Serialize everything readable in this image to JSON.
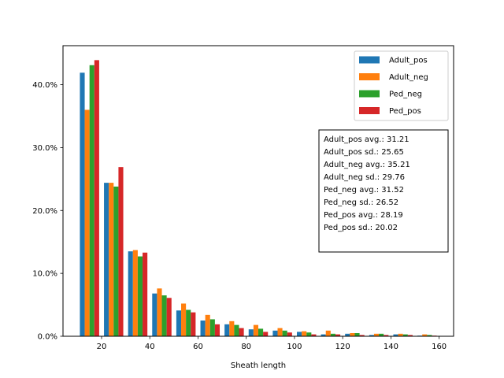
{
  "chart_data": {
    "type": "bar",
    "xlabel": "Sheath length",
    "ylabel": "",
    "xlim": [
      4,
      166
    ],
    "ylim": [
      0,
      0.462
    ],
    "bin_edges": [
      10,
      20,
      30,
      40,
      50,
      60,
      70,
      80,
      90,
      100,
      110,
      120,
      130,
      140,
      150,
      160
    ],
    "x_ticks": [
      20,
      40,
      60,
      80,
      100,
      120,
      140,
      160
    ],
    "x_tick_labels": [
      "20",
      "40",
      "60",
      "80",
      "100",
      "120",
      "140",
      "160"
    ],
    "y_ticks": [
      0,
      0.1,
      0.2,
      0.3,
      0.4
    ],
    "y_tick_labels": [
      "0.0%",
      "10.0%",
      "20.0%",
      "30.0%",
      "40.0%"
    ],
    "series": [
      {
        "name": "Adult_pos",
        "color": "#1f77b4",
        "values": [
          0.419,
          0.244,
          0.135,
          0.068,
          0.041,
          0.025,
          0.019,
          0.011,
          0.009,
          0.007,
          0.003,
          0.004,
          0.002,
          0.003,
          0.001
        ]
      },
      {
        "name": "Adult_neg",
        "color": "#ff7f0e",
        "values": [
          0.36,
          0.244,
          0.137,
          0.076,
          0.052,
          0.034,
          0.024,
          0.018,
          0.013,
          0.008,
          0.009,
          0.005,
          0.004,
          0.004,
          0.003
        ]
      },
      {
        "name": "Ped_neg",
        "color": "#2ca02c",
        "values": [
          0.431,
          0.238,
          0.127,
          0.065,
          0.042,
          0.027,
          0.018,
          0.012,
          0.009,
          0.006,
          0.004,
          0.005,
          0.004,
          0.003,
          0.002
        ]
      },
      {
        "name": "Ped_pos",
        "color": "#d62728",
        "values": [
          0.439,
          0.269,
          0.133,
          0.061,
          0.038,
          0.019,
          0.013,
          0.007,
          0.006,
          0.003,
          0.003,
          0.002,
          0.002,
          0.002,
          0.001
        ]
      }
    ],
    "legend_position": "top-right",
    "annotation": {
      "lines": [
        "Adult_pos avg.: 31.21",
        "Adult_pos sd.: 25.65",
        "Adult_neg avg.: 35.21",
        "Adult_neg sd.: 29.76",
        "Ped_neg avg.: 31.52",
        "Ped_neg sd.: 26.52",
        "Ped_pos avg.: 28.19",
        "Ped_pos sd.: 20.02"
      ]
    },
    "grid": false
  }
}
